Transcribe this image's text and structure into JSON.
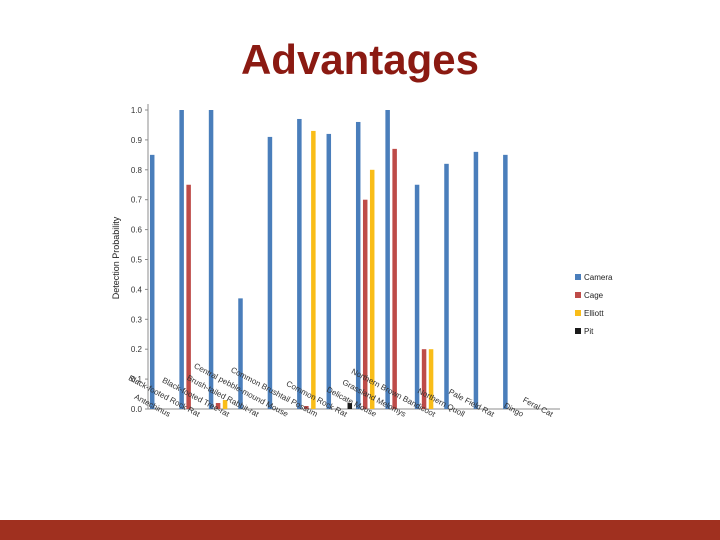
{
  "title": "Advantages",
  "chart_data": {
    "type": "bar",
    "ylabel": "Detection Probability",
    "ylim": [
      0,
      1.0
    ],
    "yticks": [
      "0.0",
      "0.1",
      "0.2",
      "0.3",
      "0.4",
      "0.5",
      "0.6",
      "0.7",
      "0.8",
      "0.9",
      "1.0"
    ],
    "grid": false,
    "legend_position": "right",
    "categories": [
      "Antechinus",
      "Black-footed Rock Rat",
      "Black-footed Tree-rat",
      "Brush-tailed Rabbit-rat",
      "Central pebble-mound Mouse",
      "Common Brushtail Possum",
      "Common Rock Rat",
      "Delicate Mouse",
      "Grassland Melomys",
      "Northern Brown Bandicoot",
      "Northern Quoll",
      "Pale Field Rat",
      "Dingo",
      "Feral Cat"
    ],
    "series": [
      {
        "name": "Camera",
        "color": "#4a7ebb",
        "values": [
          0.85,
          1.0,
          1.0,
          0.37,
          0.91,
          0.97,
          0.92,
          0.96,
          1.0,
          0.75,
          0.82,
          0.86,
          0.85,
          null
        ]
      },
      {
        "name": "Cage",
        "color": "#be4b48",
        "values": [
          null,
          0.75,
          0.02,
          null,
          null,
          0.01,
          null,
          0.7,
          0.87,
          0.2,
          null,
          null,
          null,
          null
        ]
      },
      {
        "name": "Elliott",
        "color": "#f9bd18",
        "values": [
          null,
          null,
          0.03,
          null,
          null,
          0.93,
          null,
          0.8,
          null,
          0.2,
          null,
          null,
          null,
          null
        ]
      },
      {
        "name": "Pit",
        "color": "#1a1a1a",
        "values": [
          null,
          null,
          null,
          null,
          null,
          null,
          0.02,
          null,
          null,
          null,
          null,
          null,
          null,
          null
        ]
      }
    ]
  }
}
